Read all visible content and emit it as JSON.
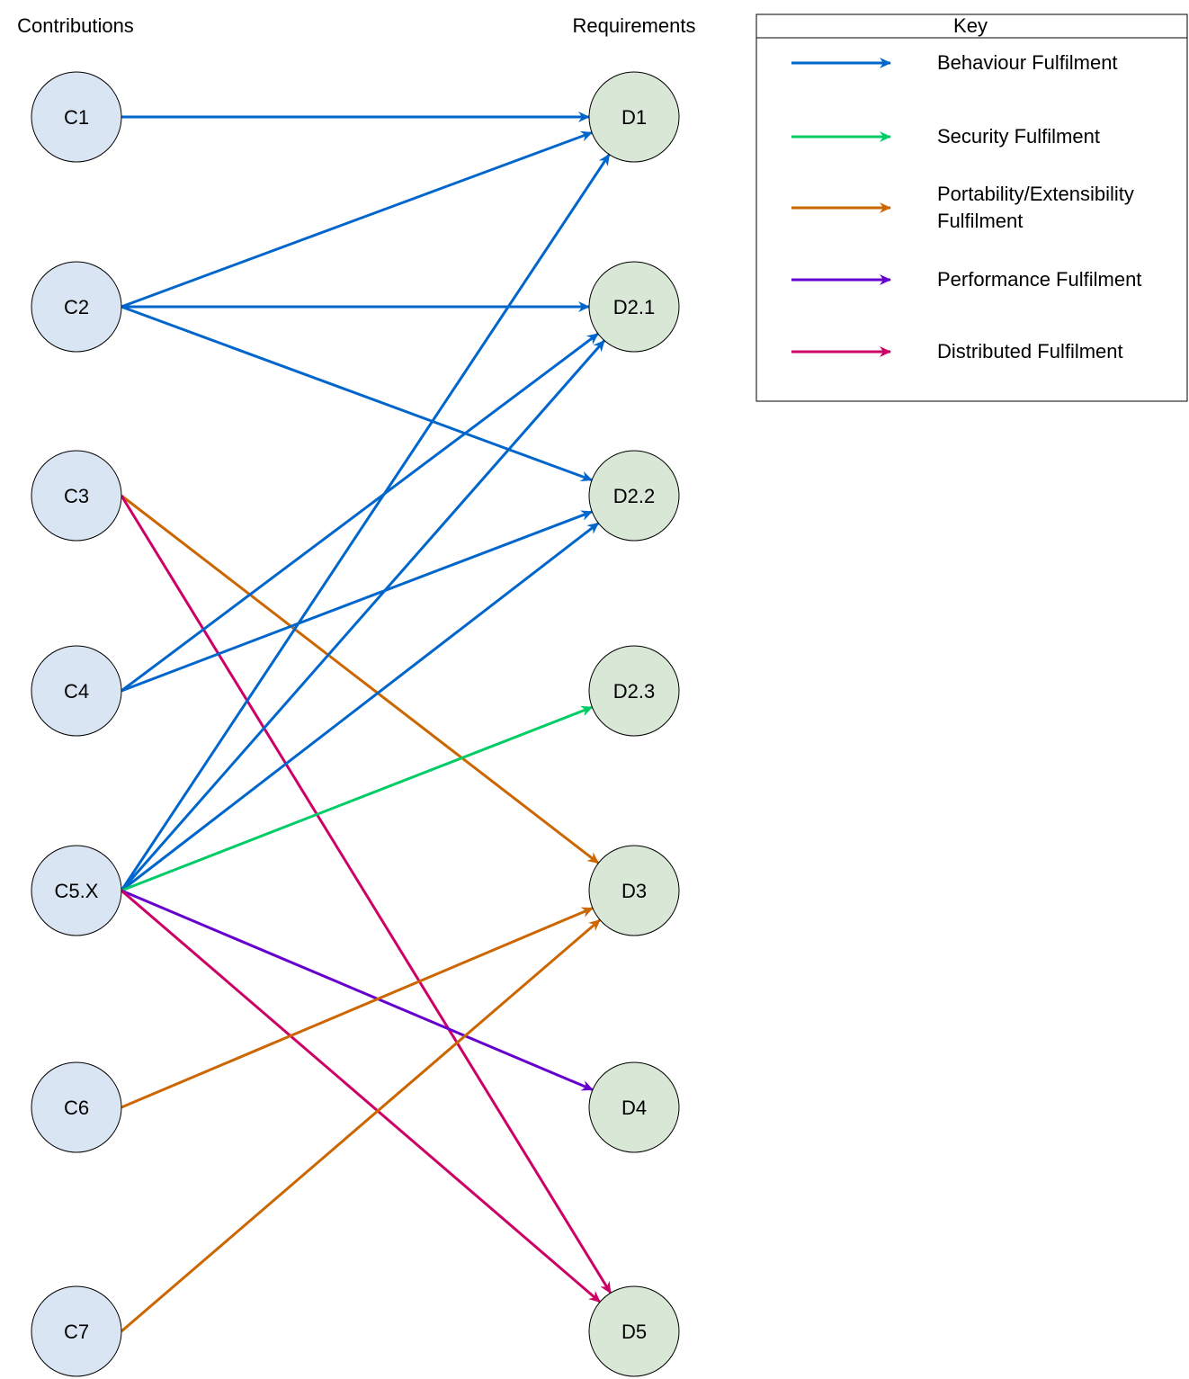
{
  "headers": {
    "contributions": "Contributions",
    "requirements": "Requirements"
  },
  "key": {
    "title": "Key",
    "items": [
      {
        "id": "behaviour",
        "label_lines": [
          "Behaviour Fulfilment"
        ],
        "color": "#0066CC"
      },
      {
        "id": "security",
        "label_lines": [
          "Security Fulfilment"
        ],
        "color": "#00CC66"
      },
      {
        "id": "portability",
        "label_lines": [
          "Portability/Extensibility",
          "Fulfilment"
        ],
        "color": "#CC6600"
      },
      {
        "id": "performance",
        "label_lines": [
          "Performance Fulfilment"
        ],
        "color": "#6600CC"
      },
      {
        "id": "distributed",
        "label_lines": [
          "Distributed Fulfilment"
        ],
        "color": "#CC0066"
      }
    ]
  },
  "colors": {
    "contribution_fill": "#DAE5F4",
    "requirement_fill": "#D9E8D6",
    "node_stroke": "#000000"
  },
  "contributions": [
    {
      "id": "C1",
      "label": "C1"
    },
    {
      "id": "C2",
      "label": "C2"
    },
    {
      "id": "C3",
      "label": "C3"
    },
    {
      "id": "C4",
      "label": "C4"
    },
    {
      "id": "C5X",
      "label": "C5.X"
    },
    {
      "id": "C6",
      "label": "C6"
    },
    {
      "id": "C7",
      "label": "C7"
    }
  ],
  "requirements": [
    {
      "id": "D1",
      "label": "D1"
    },
    {
      "id": "D21",
      "label": "D2.1"
    },
    {
      "id": "D22",
      "label": "D2.2"
    },
    {
      "id": "D23",
      "label": "D2.3"
    },
    {
      "id": "D3",
      "label": "D3"
    },
    {
      "id": "D4",
      "label": "D4"
    },
    {
      "id": "D5",
      "label": "D5"
    }
  ],
  "edges": [
    {
      "from": "C1",
      "to": "D1",
      "type": "behaviour"
    },
    {
      "from": "C2",
      "to": "D1",
      "type": "behaviour"
    },
    {
      "from": "C2",
      "to": "D21",
      "type": "behaviour"
    },
    {
      "from": "C2",
      "to": "D22",
      "type": "behaviour"
    },
    {
      "from": "C3",
      "to": "D3",
      "type": "portability"
    },
    {
      "from": "C3",
      "to": "D5",
      "type": "distributed"
    },
    {
      "from": "C4",
      "to": "D21",
      "type": "behaviour"
    },
    {
      "from": "C4",
      "to": "D22",
      "type": "behaviour"
    },
    {
      "from": "C5X",
      "to": "D1",
      "type": "behaviour"
    },
    {
      "from": "C5X",
      "to": "D21",
      "type": "behaviour"
    },
    {
      "from": "C5X",
      "to": "D22",
      "type": "behaviour"
    },
    {
      "from": "C5X",
      "to": "D23",
      "type": "security"
    },
    {
      "from": "C5X",
      "to": "D4",
      "type": "performance"
    },
    {
      "from": "C5X",
      "to": "D5",
      "type": "distributed"
    },
    {
      "from": "C6",
      "to": "D3",
      "type": "portability"
    },
    {
      "from": "C7",
      "to": "D3",
      "type": "portability"
    }
  ]
}
